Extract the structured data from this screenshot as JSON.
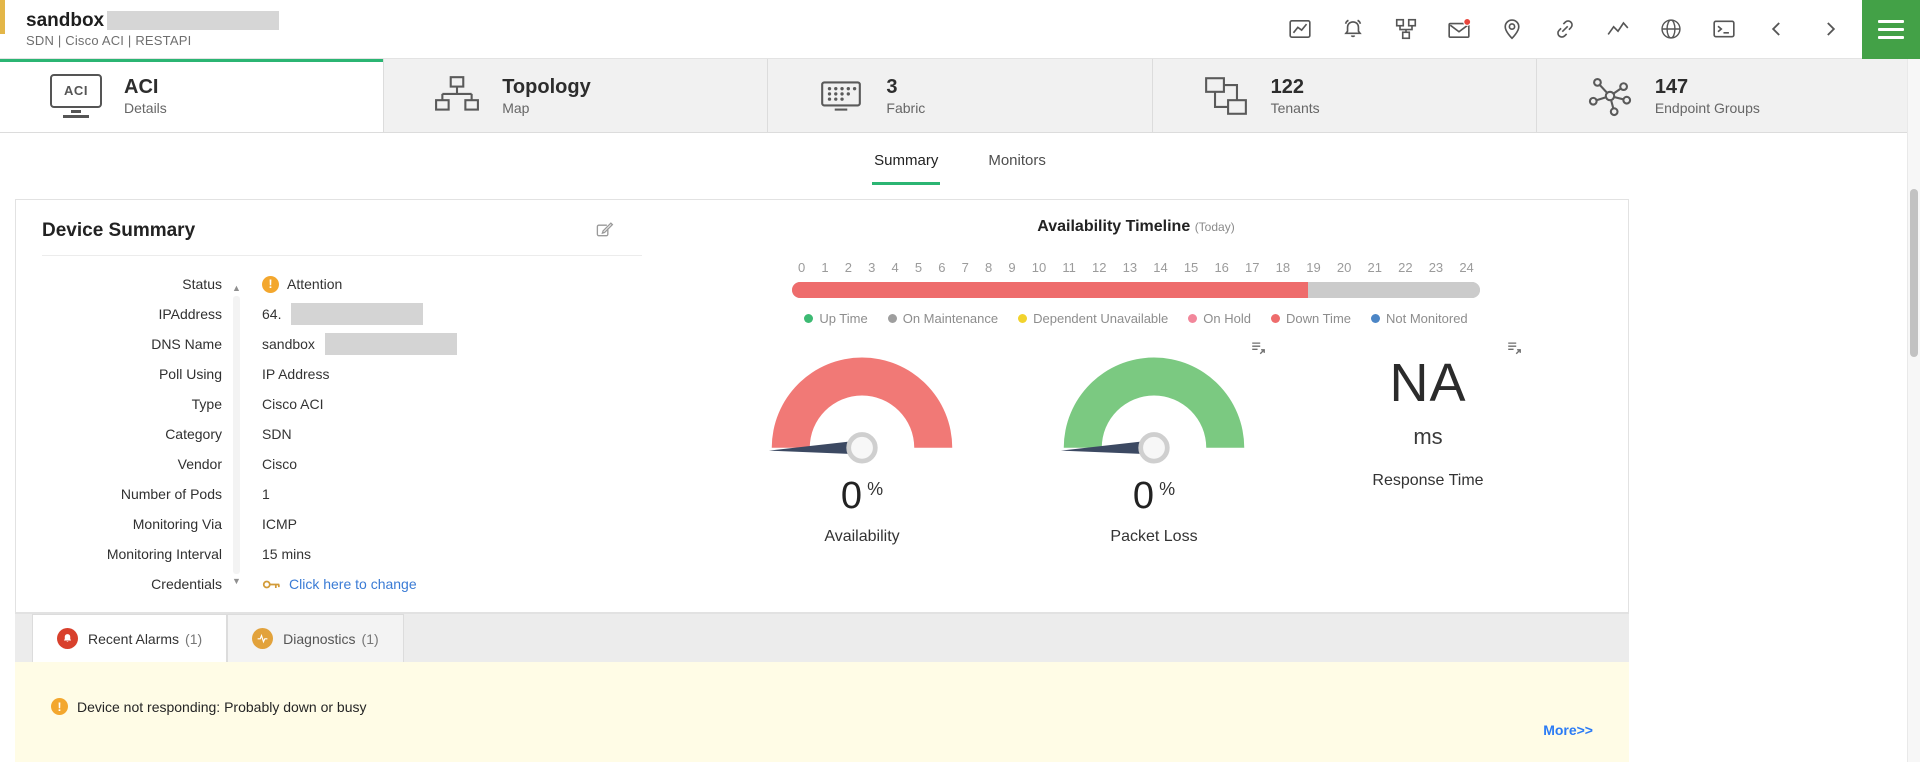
{
  "header": {
    "title": "sandbox",
    "subtitle": "SDN | Cisco ACI | RESTAPI"
  },
  "nav_cards": [
    {
      "title": "ACI",
      "subtitle": "Details",
      "icon_text": "ACI"
    },
    {
      "title": "Topology",
      "subtitle": "Map"
    },
    {
      "title": "3",
      "subtitle": "Fabric"
    },
    {
      "title": "122",
      "subtitle": "Tenants"
    },
    {
      "title": "147",
      "subtitle": "Endpoint Groups"
    }
  ],
  "subtabs": [
    {
      "label": "Summary"
    },
    {
      "label": "Monitors"
    }
  ],
  "device_summary": {
    "title": "Device Summary",
    "fields": [
      {
        "label": "Status",
        "value": "Attention"
      },
      {
        "label": "IPAddress",
        "value": "64."
      },
      {
        "label": "DNS Name",
        "value": "sandbox"
      },
      {
        "label": "Poll Using",
        "value": "IP Address"
      },
      {
        "label": "Type",
        "value": "Cisco ACI"
      },
      {
        "label": "Category",
        "value": "SDN"
      },
      {
        "label": "Vendor",
        "value": "Cisco"
      },
      {
        "label": "Number of Pods",
        "value": "1"
      },
      {
        "label": "Monitoring Via",
        "value": "ICMP"
      },
      {
        "label": "Monitoring Interval",
        "value": "15 mins"
      },
      {
        "label": "Credentials",
        "value": "Click here to change"
      }
    ]
  },
  "availability": {
    "title": "Availability Timeline",
    "subtitle": "(Today)",
    "ticks": [
      "0",
      "1",
      "2",
      "3",
      "4",
      "5",
      "6",
      "7",
      "8",
      "9",
      "10",
      "11",
      "12",
      "13",
      "14",
      "15",
      "16",
      "17",
      "18",
      "19",
      "20",
      "21",
      "22",
      "23",
      "24"
    ],
    "timeline": {
      "down_percent": 75,
      "down_color": "#ee6c6c",
      "remaining_color": "#cbcbcb"
    },
    "legend": [
      {
        "label": "Up Time",
        "color": "#3dba73"
      },
      {
        "label": "On Maintenance",
        "color": "#9e9e9e"
      },
      {
        "label": "Dependent Unavailable",
        "color": "#f2d32d"
      },
      {
        "label": "On Hold",
        "color": "#f2879b"
      },
      {
        "label": "Down Time",
        "color": "#ee6c6c"
      },
      {
        "label": "Not Monitored",
        "color": "#4c86c6"
      }
    ],
    "gauges": [
      {
        "value": "0",
        "unit": "%",
        "label": "Availability",
        "color": "#f17976"
      },
      {
        "value": "0",
        "unit": "%",
        "label": "Packet Loss",
        "color": "#7bc981"
      },
      {
        "value": "NA",
        "unit": "ms",
        "label": "Response Time"
      }
    ]
  },
  "bottom_tabs": [
    {
      "label": "Recent Alarms",
      "count": "(1)"
    },
    {
      "label": "Diagnostics",
      "count": "(1)"
    }
  ],
  "alarms": {
    "message": "Device not responding: Probably down or busy",
    "more_label": "More>>"
  }
}
